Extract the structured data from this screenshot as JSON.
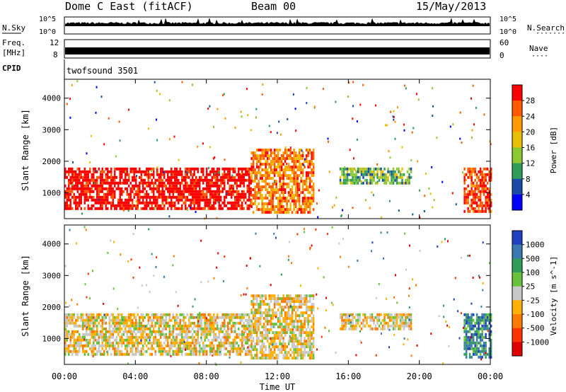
{
  "header": {
    "station": "Dome C East (fitACF)",
    "beam": "Beam 00",
    "date": "15/May/2013"
  },
  "strips": {
    "nsky": {
      "label": "N.Sky",
      "ticks": [
        "10^5",
        "10^0"
      ]
    },
    "freq": {
      "label1": "Freq.",
      "label2": "[MHz]",
      "ticks": [
        "12",
        "8"
      ]
    },
    "cpid": {
      "label": "CPID",
      "program": "twofsound 3501"
    },
    "right": {
      "nsearch": "N.Search",
      "nave": "Nave",
      "nsearch_ticks": [
        "10^5",
        "10^0"
      ],
      "nave_ticks": [
        "60",
        "0"
      ]
    }
  },
  "chart_data": [
    {
      "type": "heatmap",
      "title": "",
      "xlabel": "Time UT",
      "ylabel": "Slant Range [km]",
      "xlim": [
        0,
        24
      ],
      "ylim": [
        180,
        4600
      ],
      "x_ticks": [
        "00:00",
        "04:00",
        "08:00",
        "12:00",
        "16:00",
        "20:00",
        "00:00"
      ],
      "y_ticks": [
        1000,
        2000,
        3000,
        4000
      ],
      "colorbar": {
        "label": "Power [dB]",
        "ticks": [
          "28",
          "24",
          "20",
          "16",
          "12",
          "8",
          "4"
        ],
        "colors": [
          "#ff0000",
          "#ff5a00",
          "#ff9a00",
          "#e8c000",
          "#8cc832",
          "#2f9c5a",
          "#1a4aa8",
          "#0000ff"
        ]
      },
      "regions": [
        {
          "t0": 0.0,
          "t1": 10.5,
          "r0": 500,
          "r1": 1800,
          "level": 28
        },
        {
          "t0": 10.5,
          "t1": 14.0,
          "r0": 400,
          "r1": 2400,
          "level": 20
        },
        {
          "t0": 15.5,
          "t1": 19.5,
          "r0": 1300,
          "r1": 1800,
          "level": 10
        },
        {
          "t0": 22.5,
          "t1": 24.0,
          "r0": 400,
          "r1": 1800,
          "level": 24
        }
      ]
    },
    {
      "type": "heatmap",
      "title": "",
      "xlabel": "Time UT",
      "ylabel": "Slant Range [km]",
      "xlim": [
        0,
        24
      ],
      "ylim": [
        180,
        4600
      ],
      "x_ticks": [
        "00:00",
        "04:00",
        "08:00",
        "12:00",
        "16:00",
        "20:00",
        "00:00"
      ],
      "y_ticks": [
        1000,
        2000,
        3000,
        4000
      ],
      "colorbar": {
        "label": "Velocity [m s^-1]",
        "ticks": [
          "1000",
          "500",
          "100",
          "25",
          "-25",
          "-100",
          "-500",
          "-1000"
        ],
        "colors": [
          "#2040c0",
          "#3a78b0",
          "#2f9c5a",
          "#66c23a",
          "#c8c8c8",
          "#ffb000",
          "#ff7a00",
          "#ff3300",
          "#e00000"
        ]
      },
      "regions": [
        {
          "t0": 0.0,
          "t1": 10.5,
          "r0": 500,
          "r1": 1800,
          "level": -100
        },
        {
          "t0": 10.5,
          "t1": 14.0,
          "r0": 400,
          "r1": 2400,
          "level": -100
        },
        {
          "t0": 15.5,
          "t1": 19.5,
          "r0": 1300,
          "r1": 1800,
          "level": -100
        },
        {
          "t0": 22.5,
          "t1": 24.0,
          "r0": 400,
          "r1": 1800,
          "level": 100
        }
      ]
    }
  ]
}
